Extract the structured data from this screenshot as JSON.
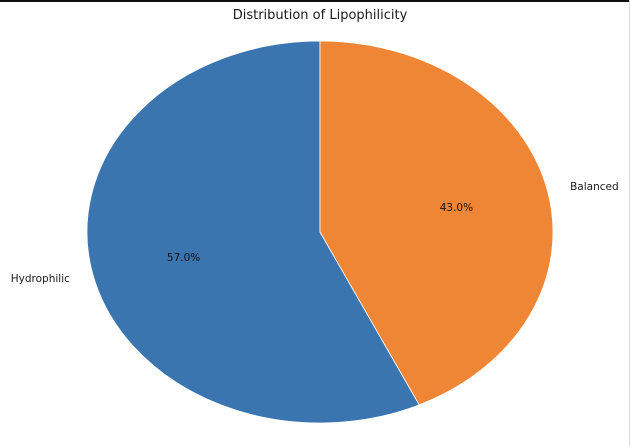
{
  "chart_data": {
    "type": "pie",
    "title": "Distribution of Lipophilicity",
    "categories": [
      "Hydrophilic",
      "Balanced"
    ],
    "values": [
      57.0,
      43.0
    ],
    "percent_labels": [
      "57.0%",
      "43.0%"
    ],
    "colors": [
      "#3b75af",
      "#ef8636"
    ],
    "start_angle_deg": 90,
    "direction": "counterclockwise",
    "legend": "none"
  }
}
